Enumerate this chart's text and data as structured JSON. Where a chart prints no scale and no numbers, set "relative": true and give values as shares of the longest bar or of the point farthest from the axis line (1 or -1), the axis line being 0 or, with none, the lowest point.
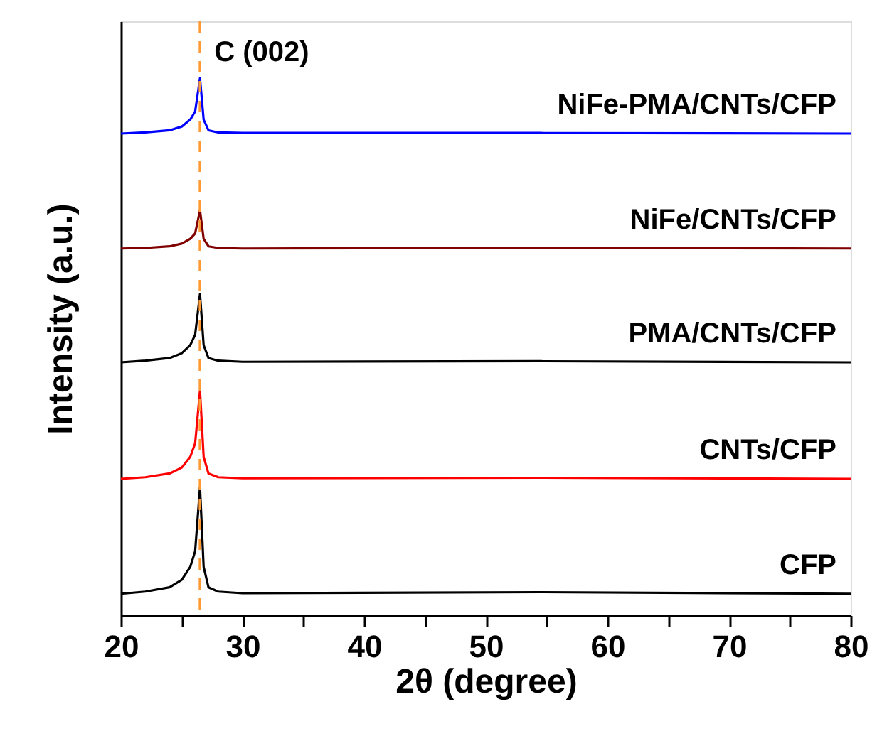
{
  "chart_data": {
    "type": "line",
    "relative": true,
    "xlabel": "2θ (degree)",
    "ylabel": "Intensity (a.u.)",
    "xlim": [
      20,
      80
    ],
    "xticks": [
      20,
      {
        "value": 25,
        "label": null
      },
      30,
      {
        "value": 35,
        "label": null
      },
      40,
      {
        "value": 45,
        "label": null
      },
      50,
      {
        "value": 55,
        "label": null
      },
      60,
      {
        "value": 65,
        "label": null
      },
      70,
      {
        "value": 75,
        "label": null
      },
      80
    ],
    "x": [
      20,
      22,
      24,
      25,
      25.7,
      26.1,
      26.5,
      26.8,
      27.2,
      28,
      30,
      54.5,
      80
    ],
    "series": [
      {
        "name": "CFP",
        "color": "#000000",
        "values": [
          0.04,
          0.044,
          0.052,
          0.066,
          0.09,
          0.119,
          0.238,
          0.09,
          0.052,
          0.044,
          0.041,
          0.043,
          0.04
        ]
      },
      {
        "name": "CNTs/CFP",
        "color": "#ff0000",
        "values": [
          0.254,
          0.257,
          0.264,
          0.275,
          0.295,
          0.32,
          0.418,
          0.295,
          0.264,
          0.257,
          0.255,
          0.256,
          0.254
        ]
      },
      {
        "name": "PMA/CNTs/CFP",
        "color": "#000000",
        "values": [
          0.471,
          0.474,
          0.479,
          0.488,
          0.503,
          0.522,
          0.598,
          0.503,
          0.479,
          0.474,
          0.472,
          0.473,
          0.471
        ]
      },
      {
        "name": "NiFe/CNTs/CFP",
        "color": "#800000",
        "values": [
          0.683,
          0.684,
          0.687,
          0.692,
          0.701,
          0.711,
          0.754,
          0.701,
          0.687,
          0.684,
          0.683,
          0.684,
          0.683
        ]
      },
      {
        "name": "NiFe-PMA/CNTs/CFP",
        "color": "#0000ff",
        "values": [
          0.897,
          0.899,
          0.903,
          0.91,
          0.923,
          0.938,
          1.0,
          0.923,
          0.903,
          0.899,
          0.898,
          0.898,
          0.897
        ]
      }
    ],
    "ref_lines": [
      {
        "axis": "x",
        "value": 26.5,
        "label": "C (002)",
        "color": "#ff9933",
        "line_style": "dashed"
      }
    ],
    "legend": false,
    "grid": false,
    "tick_labels": "x",
    "marker": "none",
    "line_style": "solid"
  }
}
